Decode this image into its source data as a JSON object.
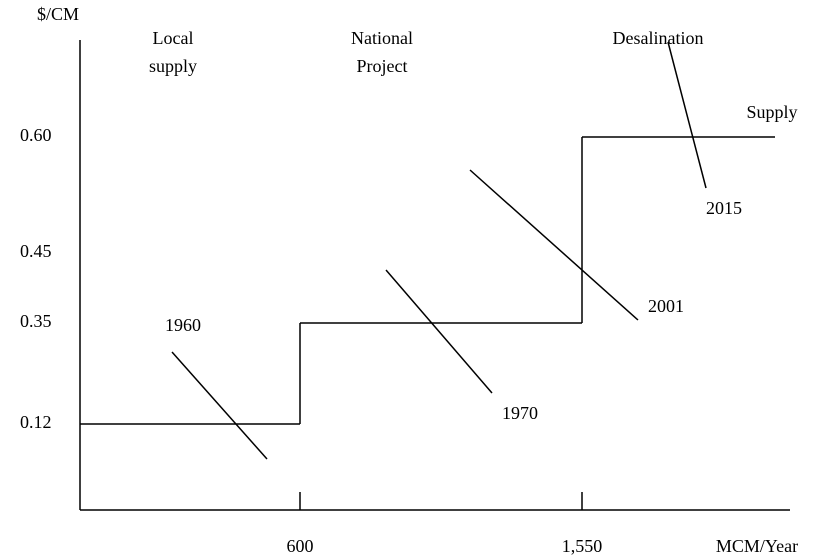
{
  "chart_data": {
    "type": "step",
    "y_label": "$/CM",
    "x_label": "MCM/Year",
    "region_labels": [
      [
        "Local",
        "supply"
      ],
      [
        "National",
        "Project"
      ],
      [
        "Desalination"
      ]
    ],
    "series": [
      {
        "name": "Supply",
        "color": "#000000",
        "x": [
          0,
          600,
          1550
        ],
        "values": [
          0.12,
          0.35,
          {
            "value": 0.6,
            "label": "0.60"
          }
        ]
      }
    ],
    "xlim": [
      0,
      2150
    ],
    "ylim": [
      0,
      0.75
    ],
    "xticks": [
      600,
      {
        "value": 1550,
        "label": "1,550"
      }
    ],
    "yticks": [
      0.12,
      0.35,
      0.45,
      {
        "value": 0.6,
        "label": "0.60"
      }
    ],
    "annotations": [
      "1960",
      "1970",
      "2001",
      "2015"
    ]
  }
}
